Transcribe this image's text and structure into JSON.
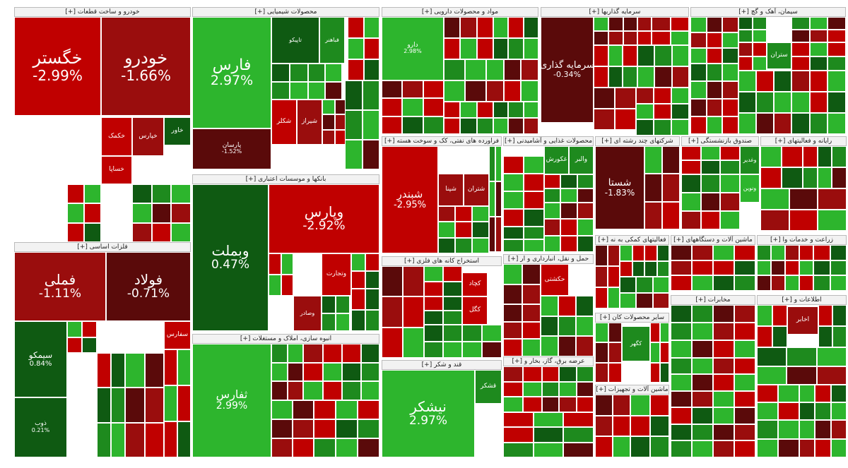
{
  "colors": {
    "green_strong": "#2db52d",
    "green_mid": "#1e8a1e",
    "green_dark": "#0f5a12",
    "red_strong": "#c00000",
    "red_mid": "#9a0d0d",
    "red_dark": "#5a0a0a",
    "header_bg": "#f2f2f2"
  },
  "sectors": [
    {
      "label": "خودرو و ساخت قطعات [+]"
    },
    {
      "label": "محصولات شیمیایی [+]"
    },
    {
      "label": "مواد و محصولات دارویی [+]"
    },
    {
      "label": "سرمایه گذاریها [+]"
    },
    {
      "label": "سیمان، آهک و گچ [+]"
    },
    {
      "label": "فلزات اساسی [+]"
    },
    {
      "label": "بانکها و موسسات اعتباری [+]"
    },
    {
      "label": "فراورده های نفتی، کک و سوخت هسته [+]"
    },
    {
      "label": "محصولات غذایی و آشامیدنی [+]"
    },
    {
      "label": "شرکتهای چند رشته ای [+]"
    },
    {
      "label": "صندوق بازنشستگی [+]"
    },
    {
      "label": "رایانه و فعالیتهای [+]"
    },
    {
      "label": "انبوه سازی، املاک و مستغلات [+]"
    },
    {
      "label": "استخراج کانه های فلزی [+]"
    },
    {
      "label": "حمل و نقل، انبارداری و ار [+]"
    },
    {
      "label": "فعالیتهای کمکی به نه [+]"
    },
    {
      "label": "ماشین آلات و دستگاههای [+]"
    },
    {
      "label": "زراعت و خدمات وا [+]"
    },
    {
      "label": "قند و شکر [+]"
    },
    {
      "label": "عرضه برق، گاز، بخار و [+]"
    },
    {
      "label": "سایر محصولات کان [+]"
    },
    {
      "label": "مخابرات [+]"
    },
    {
      "label": "اطلاعات و [+]"
    },
    {
      "label": "ماشین آلات و تجهیزات [+]"
    }
  ],
  "tiles": [
    {
      "name": "خگستر",
      "pct": "-2.99%"
    },
    {
      "name": "خودرو",
      "pct": "-1.66%"
    },
    {
      "name": "فارس",
      "pct": "2.97%"
    },
    {
      "name": "فملی",
      "pct": "-1.11%"
    },
    {
      "name": "فولاد",
      "pct": "-0.71%"
    },
    {
      "name": "وبملت",
      "pct": "0.47%"
    },
    {
      "name": "وپارس",
      "pct": "-2.92%"
    },
    {
      "name": "شبندر",
      "pct": "-2.95%"
    },
    {
      "name": "سرمایه گذاری",
      "pct": "-0.34%"
    },
    {
      "name": "شستا",
      "pct": "-1.83%"
    },
    {
      "name": "نیشکر",
      "pct": "2.97%"
    },
    {
      "name": "ثفارس",
      "pct": "2.99%"
    },
    {
      "name": "سیمکو",
      "pct": "0.84%"
    },
    {
      "name": "دارو",
      "pct": "2.98%"
    },
    {
      "name": "پارسان",
      "pct": "-1.52%"
    },
    {
      "name": "ذوب",
      "pct": "0.21%"
    },
    {
      "name": "خاور",
      "pct": ""
    },
    {
      "name": "خپارس",
      "pct": ""
    },
    {
      "name": "خکمک",
      "pct": ""
    },
    {
      "name": "خساپا",
      "pct": ""
    },
    {
      "name": "شکلر",
      "pct": ""
    },
    {
      "name": "شیراز",
      "pct": ""
    },
    {
      "name": "تاپیکو",
      "pct": ""
    },
    {
      "name": "فباهنر",
      "pct": ""
    },
    {
      "name": "وتجارت",
      "pct": ""
    },
    {
      "name": "وصادر",
      "pct": ""
    },
    {
      "name": "کگل",
      "pct": ""
    },
    {
      "name": "کچاد",
      "pct": ""
    },
    {
      "name": "شپنا",
      "pct": ""
    },
    {
      "name": "شتران",
      "pct": ""
    },
    {
      "name": "غکورش",
      "pct": ""
    },
    {
      "name": "والبر",
      "pct": ""
    },
    {
      "name": "حکشتی",
      "pct": ""
    },
    {
      "name": "کگهر",
      "pct": ""
    },
    {
      "name": "اخابر",
      "pct": ""
    },
    {
      "name": "سفارس",
      "pct": ""
    },
    {
      "name": "ستران",
      "pct": ""
    },
    {
      "name": "قشکر",
      "pct": ""
    },
    {
      "name": "وغدیر",
      "pct": ""
    },
    {
      "name": "ونوین",
      "pct": ""
    }
  ]
}
